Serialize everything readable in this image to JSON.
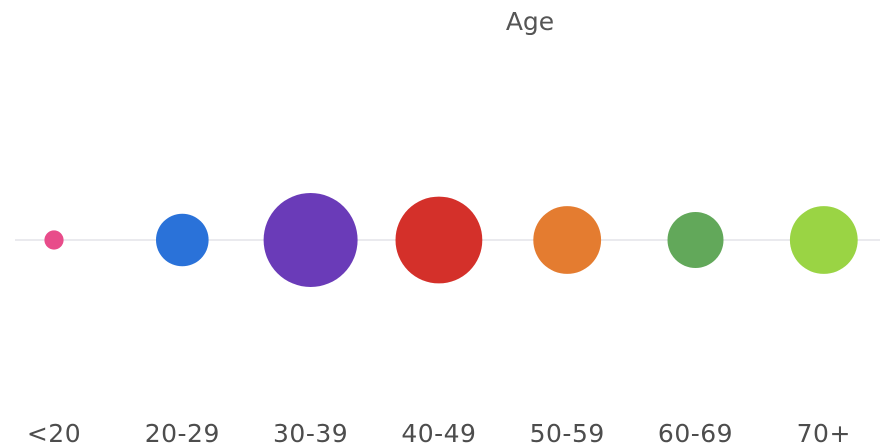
{
  "chart_data": {
    "type": "bubble",
    "title": "Age",
    "categories": [
      "<20",
      "20-29",
      "30-39",
      "40-49",
      "50-59",
      "60-69",
      "70+"
    ],
    "values": [
      1,
      7.5,
      24,
      20.5,
      12.5,
      8.5,
      12.5
    ],
    "colors": [
      "#e84c8a",
      "#2a72d9",
      "#6a3bb8",
      "#d4302a",
      "#e47c30",
      "#62a85a",
      "#9ad444"
    ]
  }
}
